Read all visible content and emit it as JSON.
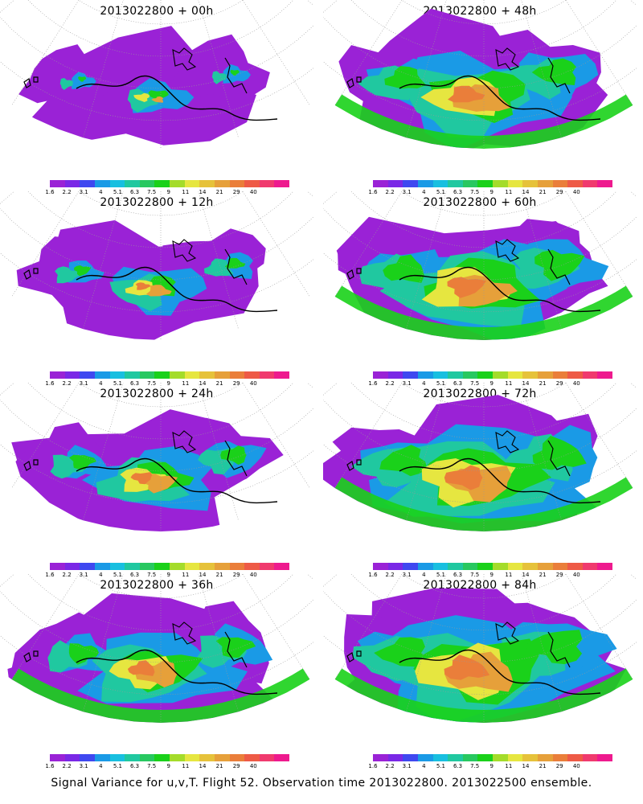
{
  "panels": [
    {
      "title": "2013022800 + 00h",
      "intensity": 0.15
    },
    {
      "title": "2013022800 + 48h",
      "intensity": 0.7
    },
    {
      "title": "2013022800 + 12h",
      "intensity": 0.3
    },
    {
      "title": "2013022800 + 60h",
      "intensity": 0.78
    },
    {
      "title": "2013022800 + 24h",
      "intensity": 0.45
    },
    {
      "title": "2013022800 + 72h",
      "intensity": 0.85
    },
    {
      "title": "2013022800 + 36h",
      "intensity": 0.58
    },
    {
      "title": "2013022800 + 84h",
      "intensity": 0.92
    }
  ],
  "colorbar": {
    "colors": [
      "#9a22d6",
      "#7a28e6",
      "#3f48f0",
      "#1a9ae6",
      "#18bfe0",
      "#20c8a0",
      "#28c860",
      "#1ad11a",
      "#a4dc2a",
      "#e6e640",
      "#e6c23a",
      "#e6a03a",
      "#ea7e3a",
      "#ee5a46",
      "#f03a6e",
      "#ee1a8e"
    ],
    "labels": [
      "1.6",
      "2.2",
      "3.1",
      "4",
      "5.1",
      "6.3",
      "7.5",
      "9",
      "11",
      "14",
      "21",
      "29",
      "40"
    ]
  },
  "footer": "Signal Variance for u,v,T. Flight 52. Observation time 2013022800. 2013022500 ensemble."
}
